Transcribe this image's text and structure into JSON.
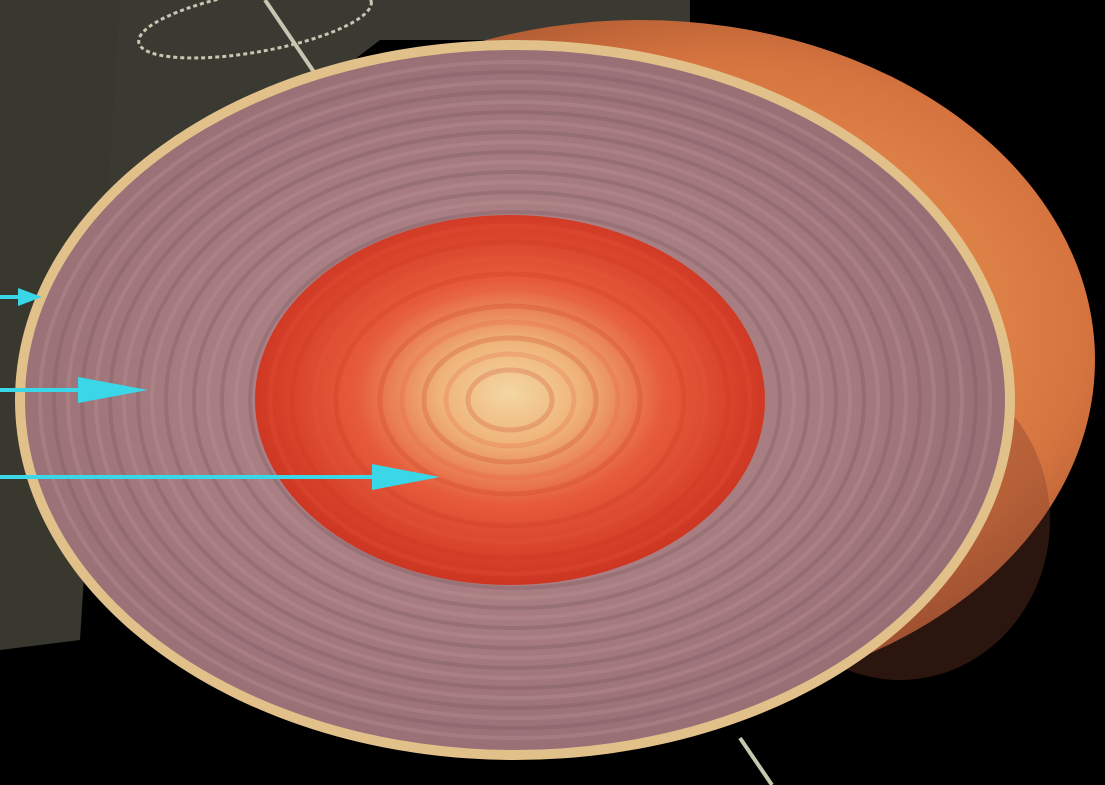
{
  "scene": {
    "subject": "cutaway-celestial-body",
    "colors": {
      "background": "#000000",
      "backdrop_panel": "#3a3a33",
      "outer_shell": "#e8944f",
      "outer_shell_dark": "#8a3f24",
      "mantle": "#a57a7f",
      "mantle_ring_light": "#b99196",
      "mantle_ring_dark": "#7b5b61",
      "rim": "#e1c08a",
      "core_edge": "#c8321f",
      "core_mid": "#e65b3b",
      "core_center": "#f4d6a2",
      "arrow": "#3ad7e8",
      "orbit_line": "#c7c6b0"
    },
    "arrows": [
      {
        "name": "arrow-top",
        "target": "outer-rim"
      },
      {
        "name": "arrow-middle",
        "target": "mantle"
      },
      {
        "name": "arrow-bottom",
        "target": "core"
      }
    ]
  }
}
